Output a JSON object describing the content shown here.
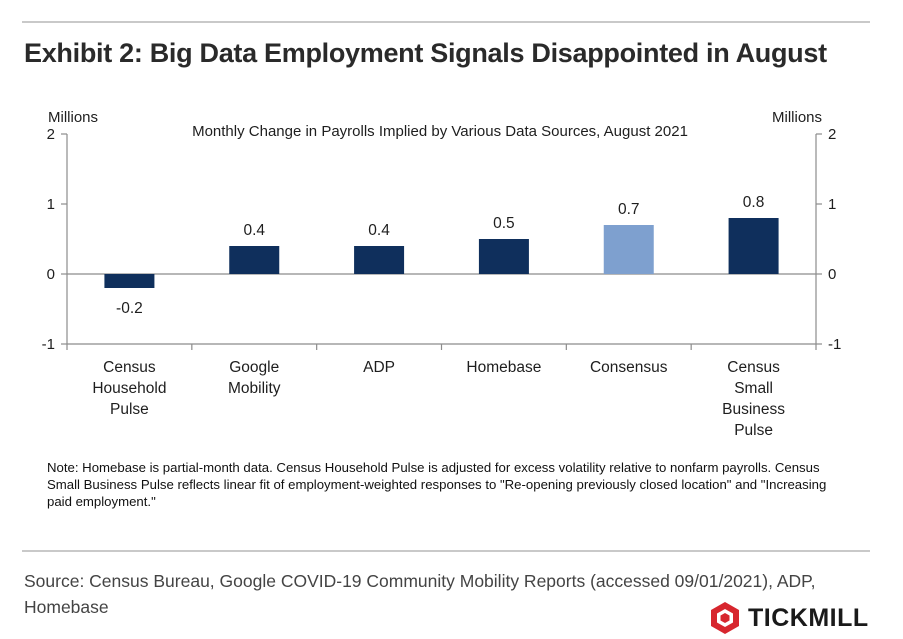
{
  "header": {
    "title": "Exhibit 2: Big Data Employment Signals Disappointed in August"
  },
  "chart_data": {
    "type": "bar",
    "title": "Monthly Change in Payrolls Implied by Various Data Sources, August 2021",
    "ylabel_left": "Millions",
    "ylabel_right": "Millions",
    "ylim": [
      -1,
      2
    ],
    "yticks": [
      -1,
      0,
      1,
      2
    ],
    "categories": [
      [
        "Census",
        "Household",
        "Pulse"
      ],
      [
        "Google",
        "Mobility"
      ],
      [
        "ADP"
      ],
      [
        "Homebase"
      ],
      [
        "Consensus"
      ],
      [
        "Census",
        "Small",
        "Business",
        "Pulse"
      ]
    ],
    "values": [
      -0.2,
      0.4,
      0.4,
      0.5,
      0.7,
      0.8
    ],
    "value_labels": [
      "-0.2",
      "0.4",
      "0.4",
      "0.5",
      "0.7",
      "0.8"
    ],
    "bar_colors": [
      "#0f2f5c",
      "#0f2f5c",
      "#0f2f5c",
      "#0f2f5c",
      "#7ea0cf",
      "#0f2f5c"
    ],
    "grid": false,
    "legend": "none"
  },
  "note": "Note:  Homebase is partial-month data. Census Household Pulse is adjusted for excess volatility relative to nonfarm payrolls. Census Small Business Pulse reflects linear fit of employment-weighted responses to \"Re-opening previously closed location\" and \"Increasing paid employment.\"",
  "source": "Source: Census Bureau, Google COVID-19 Community Mobility Reports (accessed 09/01/2021), ADP, Homebase",
  "brand": {
    "name": "TICKMILL",
    "logo_color": "#d7262e",
    "logo_icon": "tickmill-logo-icon"
  }
}
